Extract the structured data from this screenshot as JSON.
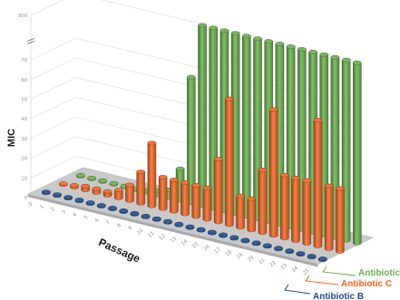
{
  "chart_data": {
    "type": "bar",
    "variant": "3d-cylinder",
    "title": "",
    "xlabel": "Passage",
    "ylabel": "MIC",
    "x": [
      "0",
      "1",
      "2",
      "3",
      "4",
      "5",
      "6",
      "7",
      "8",
      "9",
      "10",
      "11",
      "12",
      "13",
      "14",
      "15",
      "16",
      "17",
      "18",
      "19",
      "20",
      "21",
      "22",
      "23",
      "24",
      "25"
    ],
    "yticks": [
      "0",
      "10",
      "20",
      "30",
      "40",
      "50",
      "60",
      "70",
      "800"
    ],
    "axis_break": true,
    "grid": true,
    "series": [
      {
        "name": "Antibiotic I",
        "color": "#6ab04c",
        "values": [
          0.5,
          0.5,
          0.5,
          0.5,
          0.5,
          0.5,
          1,
          2,
          4,
          16,
          64,
          800,
          800,
          800,
          800,
          800,
          800,
          800,
          800,
          800,
          800,
          800,
          800,
          800,
          800,
          800
        ]
      },
      {
        "name": "Antibiotic C",
        "color": "#f26522",
        "values": [
          0.5,
          1,
          2,
          2,
          2,
          4,
          8,
          16,
          32,
          16,
          16,
          16,
          16,
          16,
          32,
          64,
          16,
          16,
          32,
          64,
          32,
          32,
          32,
          64,
          32,
          32
        ]
      },
      {
        "name": "Antibiotic B",
        "color": "#1f4e8c",
        "values": [
          0.5,
          0.5,
          0.5,
          0.5,
          0.5,
          0.5,
          0.5,
          0.5,
          0.5,
          0.5,
          0.5,
          0.5,
          0.5,
          0.5,
          0.5,
          0.5,
          0.5,
          0.5,
          0.5,
          0.5,
          0.5,
          0.5,
          0.5,
          0.5,
          0.5,
          0.5
        ]
      }
    ]
  }
}
